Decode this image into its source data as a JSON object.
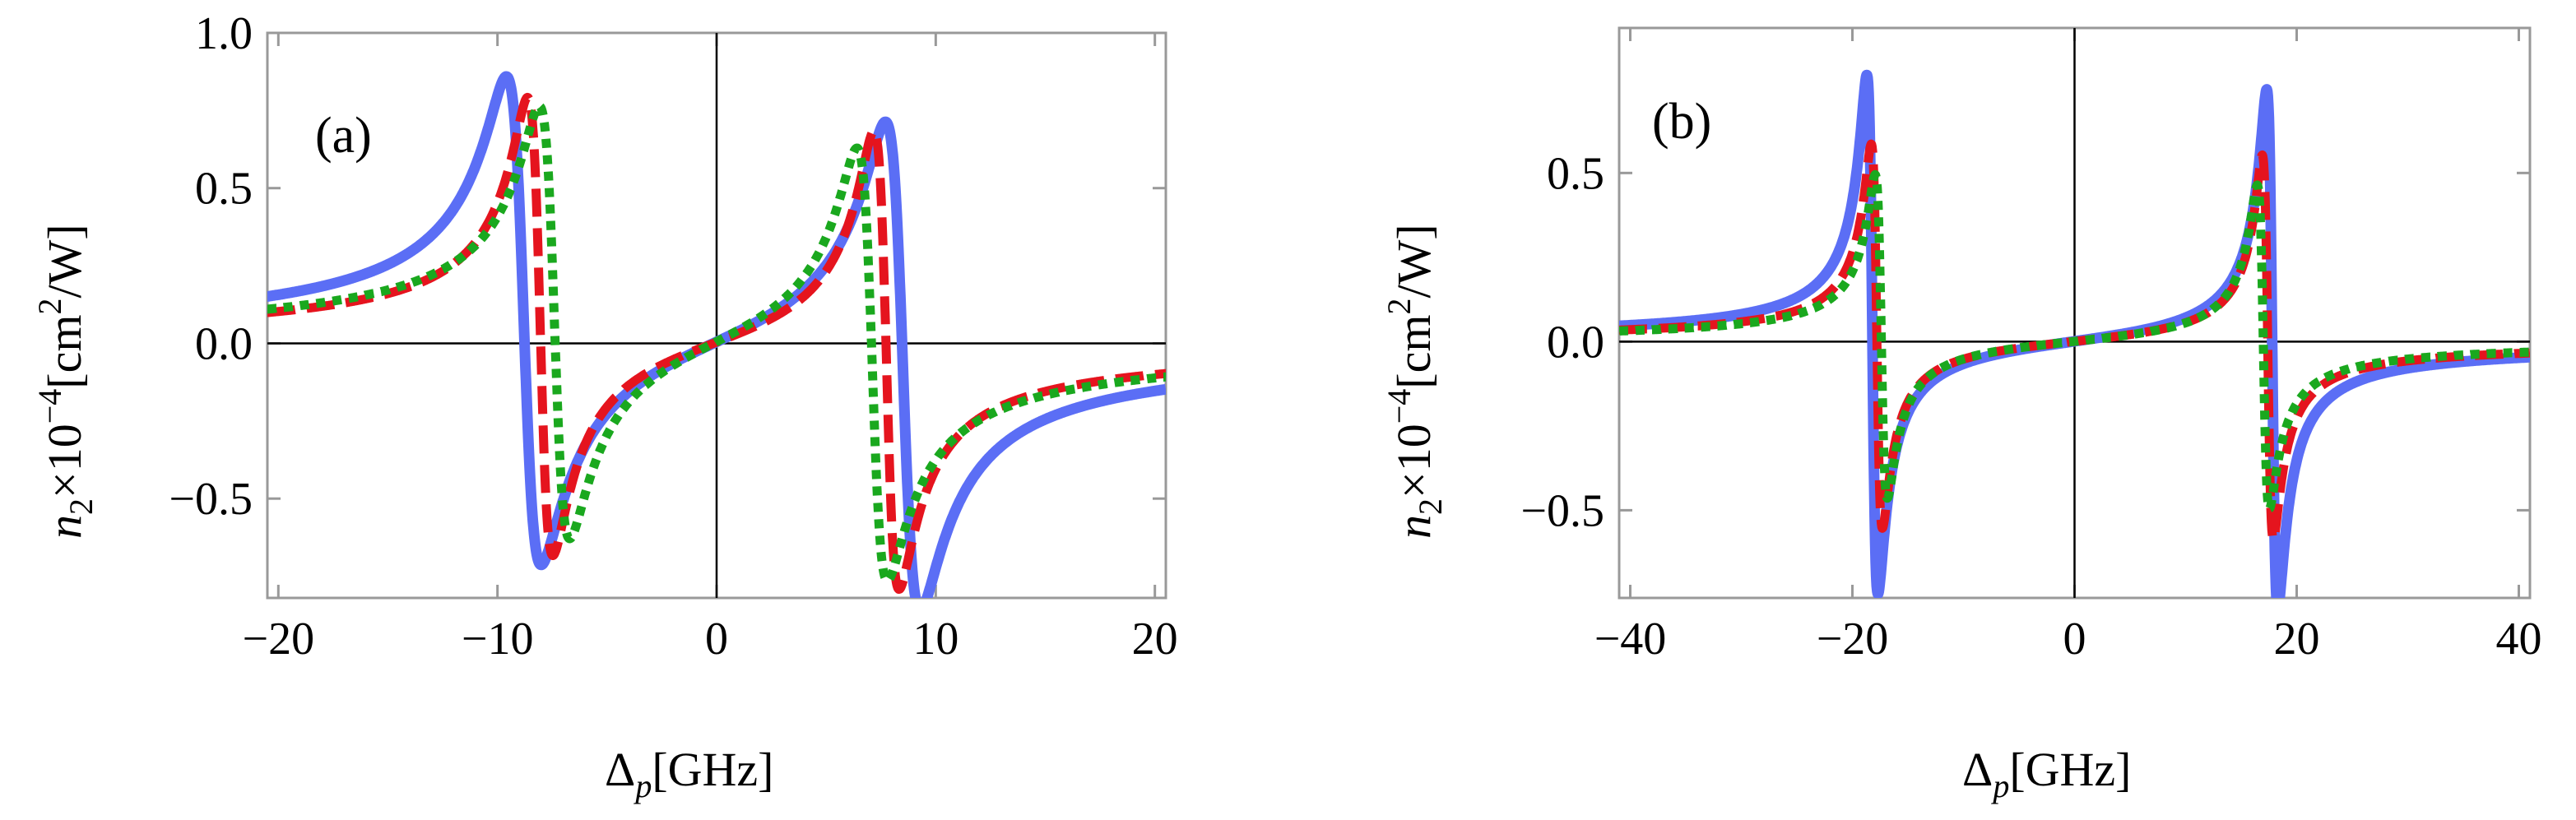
{
  "chart_data": [
    {
      "panel_label": "(a)",
      "type": "line",
      "xlabel": "Δp[GHz]",
      "ylabel": "n2×10−4[cm2/W]",
      "xlim": [
        -20.5,
        20.5
      ],
      "ylim": [
        -0.82,
        1.0
      ],
      "xticks": [
        -20,
        -10,
        0,
        10,
        20
      ],
      "xtick_labels": [
        "−20",
        "−10",
        "0",
        "10",
        "20"
      ],
      "yticks": [
        -0.5,
        0.0,
        0.5,
        1.0
      ],
      "ytick_labels": [
        "−0.5",
        "0.0",
        "0.5",
        "1.0"
      ],
      "series": [
        {
          "name": "solid",
          "color": "#5b6ef5",
          "style": "solid",
          "resonances": [
            {
              "x0": -8.8,
              "A": 0.79,
              "g": 0.8
            },
            {
              "x0": 8.5,
              "A": 0.79,
              "g": 0.8
            }
          ]
        },
        {
          "name": "dashed",
          "color": "#e5141e",
          "style": "dashed",
          "resonances": [
            {
              "x0": -8.05,
              "A": 0.74,
              "g": 0.58
            },
            {
              "x0": 7.75,
              "A": 0.74,
              "g": 0.58
            }
          ]
        },
        {
          "name": "dotted",
          "color": "#1aa81e",
          "style": "dotted",
          "resonances": [
            {
              "x0": -7.4,
              "A": 0.7,
              "g": 0.7
            },
            {
              "x0": 7.1,
              "A": 0.7,
              "g": 0.7
            }
          ]
        }
      ]
    },
    {
      "panel_label": "(b)",
      "type": "line",
      "xlabel": "Δp[GHz]",
      "ylabel": "n2×10−4[cm2/W]",
      "xlim": [
        -41,
        41
      ],
      "ylim": [
        -0.76,
        0.93
      ],
      "xticks": [
        -40,
        -20,
        0,
        20,
        40
      ],
      "xtick_labels": [
        "−40",
        "−20",
        "0",
        "20",
        "40"
      ],
      "yticks": [
        -0.5,
        0.0,
        0.5
      ],
      "ytick_labels": [
        "−0.5",
        "0.0",
        "0.5"
      ],
      "series": [
        {
          "name": "solid",
          "color": "#5b6ef5",
          "style": "solid",
          "resonances": [
            {
              "x0": -18.2,
              "A": 0.77,
              "g": 0.5
            },
            {
              "x0": 17.8,
              "A": 0.77,
              "g": 0.5
            }
          ]
        },
        {
          "name": "dashed",
          "color": "#e5141e",
          "style": "dashed",
          "resonances": [
            {
              "x0": -17.8,
              "A": 0.57,
              "g": 0.5
            },
            {
              "x0": 17.4,
              "A": 0.57,
              "g": 0.5
            }
          ]
        },
        {
          "name": "dotted",
          "color": "#1aa81e",
          "style": "dotted",
          "resonances": [
            {
              "x0": -17.4,
              "A": 0.48,
              "g": 0.55
            },
            {
              "x0": 17.0,
              "A": 0.48,
              "g": 0.55
            }
          ]
        }
      ]
    }
  ]
}
